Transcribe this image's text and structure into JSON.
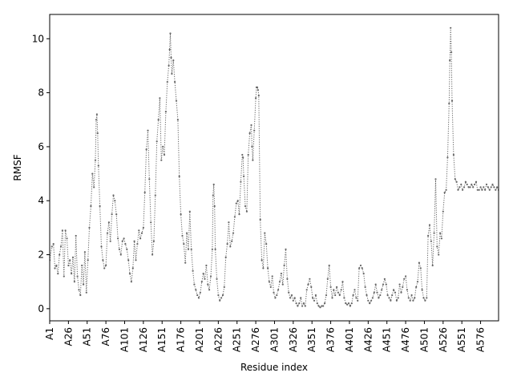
{
  "chart_data": {
    "type": "line",
    "title": "",
    "xlabel": "Residue index",
    "ylabel": "RMSF",
    "xlim": [
      1,
      600
    ],
    "ylim": [
      -0.45,
      10.9
    ],
    "yticks": [
      0,
      2,
      4,
      6,
      8,
      10
    ],
    "xticks": [
      {
        "x": 1,
        "label": "A1"
      },
      {
        "x": 26,
        "label": "A26"
      },
      {
        "x": 51,
        "label": "A51"
      },
      {
        "x": 76,
        "label": "A76"
      },
      {
        "x": 101,
        "label": "A101"
      },
      {
        "x": 126,
        "label": "A126"
      },
      {
        "x": 151,
        "label": "A151"
      },
      {
        "x": 176,
        "label": "A176"
      },
      {
        "x": 201,
        "label": "A201"
      },
      {
        "x": 226,
        "label": "A226"
      },
      {
        "x": 251,
        "label": "A251"
      },
      {
        "x": 276,
        "label": "A276"
      },
      {
        "x": 301,
        "label": "A301"
      },
      {
        "x": 326,
        "label": "A326"
      },
      {
        "x": 351,
        "label": "A351"
      },
      {
        "x": 376,
        "label": "A376"
      },
      {
        "x": 401,
        "label": "A401"
      },
      {
        "x": 426,
        "label": "A426"
      },
      {
        "x": 451,
        "label": "A451"
      },
      {
        "x": 476,
        "label": "A476"
      },
      {
        "x": 501,
        "label": "A501"
      },
      {
        "x": 526,
        "label": "A526"
      },
      {
        "x": 551,
        "label": "A551"
      },
      {
        "x": 576,
        "label": "A576"
      }
    ],
    "grid": false,
    "series": [
      {
        "color": "#666666",
        "style": "dotted line with point markers",
        "points": [
          [
            1,
            1.8
          ],
          [
            4,
            2.3
          ],
          [
            6,
            2.4
          ],
          [
            8,
            1.5
          ],
          [
            10,
            1.6
          ],
          [
            12,
            1.3
          ],
          [
            14,
            2.0
          ],
          [
            16,
            2.3
          ],
          [
            18,
            2.9
          ],
          [
            20,
            1.2
          ],
          [
            22,
            2.9
          ],
          [
            24,
            2.6
          ],
          [
            26,
            1.6
          ],
          [
            28,
            1.8
          ],
          [
            30,
            1.3
          ],
          [
            32,
            1.9
          ],
          [
            34,
            1.0
          ],
          [
            36,
            2.7
          ],
          [
            38,
            1.2
          ],
          [
            40,
            0.7
          ],
          [
            42,
            0.5
          ],
          [
            44,
            1.6
          ],
          [
            46,
            0.9
          ],
          [
            48,
            2.1
          ],
          [
            50,
            0.6
          ],
          [
            52,
            1.8
          ],
          [
            54,
            3.0
          ],
          [
            56,
            3.8
          ],
          [
            58,
            5.0
          ],
          [
            60,
            4.5
          ],
          [
            62,
            5.5
          ],
          [
            63,
            7.0
          ],
          [
            64,
            7.2
          ],
          [
            65,
            6.5
          ],
          [
            66,
            5.3
          ],
          [
            68,
            3.8
          ],
          [
            70,
            2.3
          ],
          [
            72,
            1.8
          ],
          [
            74,
            1.5
          ],
          [
            76,
            1.6
          ],
          [
            78,
            2.8
          ],
          [
            80,
            3.2
          ],
          [
            82,
            2.5
          ],
          [
            84,
            3.5
          ],
          [
            86,
            4.2
          ],
          [
            88,
            4.0
          ],
          [
            90,
            3.5
          ],
          [
            92,
            2.6
          ],
          [
            94,
            2.2
          ],
          [
            96,
            2.0
          ],
          [
            98,
            2.5
          ],
          [
            100,
            2.6
          ],
          [
            102,
            2.4
          ],
          [
            104,
            2.2
          ],
          [
            106,
            1.8
          ],
          [
            108,
            1.3
          ],
          [
            110,
            1.0
          ],
          [
            112,
            1.5
          ],
          [
            114,
            2.5
          ],
          [
            116,
            1.8
          ],
          [
            118,
            2.4
          ],
          [
            120,
            2.9
          ],
          [
            122,
            2.6
          ],
          [
            124,
            2.8
          ],
          [
            126,
            3.0
          ],
          [
            128,
            4.3
          ],
          [
            130,
            5.9
          ],
          [
            132,
            6.6
          ],
          [
            134,
            4.8
          ],
          [
            136,
            3.2
          ],
          [
            138,
            2.0
          ],
          [
            140,
            2.5
          ],
          [
            142,
            4.2
          ],
          [
            144,
            6.2
          ],
          [
            146,
            7.0
          ],
          [
            148,
            7.8
          ],
          [
            150,
            5.5
          ],
          [
            152,
            6.0
          ],
          [
            154,
            5.7
          ],
          [
            156,
            7.3
          ],
          [
            158,
            8.4
          ],
          [
            160,
            9.0
          ],
          [
            161,
            9.6
          ],
          [
            162,
            10.2
          ],
          [
            163,
            9.3
          ],
          [
            164,
            8.7
          ],
          [
            166,
            9.2
          ],
          [
            168,
            8.4
          ],
          [
            170,
            7.7
          ],
          [
            172,
            7.0
          ],
          [
            174,
            4.9
          ],
          [
            176,
            3.5
          ],
          [
            178,
            2.7
          ],
          [
            180,
            2.4
          ],
          [
            182,
            1.7
          ],
          [
            184,
            2.8
          ],
          [
            186,
            2.2
          ],
          [
            188,
            3.6
          ],
          [
            190,
            2.2
          ],
          [
            192,
            1.4
          ],
          [
            194,
            0.9
          ],
          [
            196,
            0.7
          ],
          [
            198,
            0.5
          ],
          [
            200,
            0.4
          ],
          [
            202,
            0.6
          ],
          [
            204,
            1.0
          ],
          [
            206,
            1.3
          ],
          [
            208,
            1.1
          ],
          [
            210,
            1.6
          ],
          [
            212,
            0.9
          ],
          [
            214,
            0.7
          ],
          [
            216,
            1.2
          ],
          [
            218,
            2.2
          ],
          [
            219,
            4.2
          ],
          [
            220,
            4.6
          ],
          [
            221,
            3.8
          ],
          [
            222,
            2.2
          ],
          [
            224,
            1.1
          ],
          [
            226,
            0.5
          ],
          [
            228,
            0.3
          ],
          [
            230,
            0.4
          ],
          [
            232,
            0.5
          ],
          [
            234,
            0.8
          ],
          [
            236,
            1.9
          ],
          [
            238,
            2.4
          ],
          [
            240,
            3.2
          ],
          [
            242,
            2.3
          ],
          [
            244,
            2.5
          ],
          [
            246,
            2.8
          ],
          [
            248,
            3.4
          ],
          [
            250,
            3.9
          ],
          [
            252,
            4.0
          ],
          [
            254,
            3.5
          ],
          [
            256,
            4.7
          ],
          [
            258,
            5.7
          ],
          [
            259,
            5.6
          ],
          [
            260,
            4.9
          ],
          [
            262,
            3.8
          ],
          [
            264,
            3.6
          ],
          [
            266,
            5.7
          ],
          [
            268,
            6.5
          ],
          [
            270,
            6.8
          ],
          [
            271,
            6.0
          ],
          [
            272,
            5.5
          ],
          [
            274,
            6.6
          ],
          [
            276,
            7.8
          ],
          [
            277,
            8.2
          ],
          [
            278,
            8.2
          ],
          [
            279,
            8.1
          ],
          [
            280,
            7.9
          ],
          [
            282,
            3.3
          ],
          [
            284,
            1.8
          ],
          [
            286,
            1.5
          ],
          [
            288,
            2.8
          ],
          [
            290,
            2.4
          ],
          [
            292,
            1.5
          ],
          [
            294,
            1.0
          ],
          [
            296,
            0.8
          ],
          [
            298,
            1.2
          ],
          [
            300,
            0.6
          ],
          [
            302,
            0.4
          ],
          [
            304,
            0.5
          ],
          [
            306,
            0.7
          ],
          [
            308,
            1.0
          ],
          [
            310,
            1.3
          ],
          [
            312,
            0.9
          ],
          [
            314,
            1.6
          ],
          [
            316,
            2.2
          ],
          [
            318,
            1.1
          ],
          [
            320,
            0.6
          ],
          [
            322,
            0.4
          ],
          [
            324,
            0.5
          ],
          [
            326,
            0.3
          ],
          [
            328,
            0.4
          ],
          [
            330,
            0.2
          ],
          [
            332,
            0.1
          ],
          [
            334,
            0.2
          ],
          [
            336,
            0.4
          ],
          [
            338,
            0.1
          ],
          [
            340,
            0.2
          ],
          [
            342,
            0.1
          ],
          [
            344,
            0.7
          ],
          [
            346,
            0.9
          ],
          [
            348,
            1.1
          ],
          [
            350,
            0.8
          ],
          [
            352,
            0.4
          ],
          [
            354,
            0.3
          ],
          [
            356,
            0.5
          ],
          [
            358,
            0.2
          ],
          [
            360,
            0.1
          ],
          [
            362,
            0.05
          ],
          [
            364,
            0.1
          ],
          [
            366,
            0.1
          ],
          [
            368,
            0.2
          ],
          [
            370,
            0.5
          ],
          [
            372,
            1.1
          ],
          [
            374,
            1.6
          ],
          [
            376,
            0.8
          ],
          [
            378,
            0.4
          ],
          [
            380,
            0.7
          ],
          [
            382,
            0.5
          ],
          [
            384,
            0.8
          ],
          [
            386,
            0.6
          ],
          [
            388,
            0.5
          ],
          [
            390,
            0.7
          ],
          [
            392,
            1.0
          ],
          [
            394,
            0.4
          ],
          [
            396,
            0.2
          ],
          [
            398,
            0.15
          ],
          [
            400,
            0.2
          ],
          [
            402,
            0.1
          ],
          [
            404,
            0.2
          ],
          [
            406,
            0.5
          ],
          [
            408,
            0.7
          ],
          [
            410,
            0.4
          ],
          [
            412,
            0.3
          ],
          [
            414,
            1.5
          ],
          [
            416,
            1.6
          ],
          [
            418,
            1.5
          ],
          [
            420,
            1.3
          ],
          [
            422,
            0.8
          ],
          [
            424,
            0.5
          ],
          [
            426,
            0.3
          ],
          [
            428,
            0.2
          ],
          [
            430,
            0.3
          ],
          [
            432,
            0.4
          ],
          [
            434,
            0.6
          ],
          [
            436,
            0.9
          ],
          [
            438,
            0.6
          ],
          [
            440,
            0.4
          ],
          [
            442,
            0.5
          ],
          [
            444,
            0.7
          ],
          [
            446,
            0.9
          ],
          [
            448,
            1.1
          ],
          [
            450,
            0.9
          ],
          [
            452,
            0.5
          ],
          [
            454,
            0.4
          ],
          [
            456,
            0.3
          ],
          [
            458,
            0.5
          ],
          [
            460,
            0.7
          ],
          [
            462,
            0.6
          ],
          [
            464,
            0.3
          ],
          [
            466,
            0.4
          ],
          [
            468,
            0.9
          ],
          [
            470,
            0.6
          ],
          [
            472,
            0.8
          ],
          [
            474,
            1.1
          ],
          [
            476,
            1.2
          ],
          [
            478,
            0.7
          ],
          [
            480,
            0.4
          ],
          [
            482,
            0.3
          ],
          [
            484,
            0.5
          ],
          [
            486,
            0.3
          ],
          [
            488,
            0.4
          ],
          [
            490,
            0.8
          ],
          [
            492,
            1.0
          ],
          [
            494,
            1.7
          ],
          [
            496,
            1.5
          ],
          [
            498,
            0.7
          ],
          [
            500,
            0.4
          ],
          [
            502,
            0.3
          ],
          [
            504,
            0.4
          ],
          [
            506,
            2.7
          ],
          [
            508,
            3.1
          ],
          [
            510,
            2.5
          ],
          [
            512,
            1.6
          ],
          [
            514,
            2.8
          ],
          [
            516,
            4.8
          ],
          [
            518,
            2.3
          ],
          [
            520,
            2.0
          ],
          [
            522,
            2.8
          ],
          [
            524,
            2.6
          ],
          [
            526,
            3.6
          ],
          [
            528,
            4.3
          ],
          [
            530,
            4.4
          ],
          [
            532,
            5.6
          ],
          [
            534,
            7.6
          ],
          [
            535,
            9.2
          ],
          [
            536,
            10.4
          ],
          [
            537,
            9.5
          ],
          [
            538,
            7.7
          ],
          [
            540,
            5.7
          ],
          [
            542,
            4.8
          ],
          [
            544,
            4.7
          ],
          [
            546,
            4.4
          ],
          [
            548,
            4.5
          ],
          [
            550,
            4.6
          ],
          [
            552,
            4.4
          ],
          [
            554,
            4.5
          ],
          [
            556,
            4.7
          ],
          [
            558,
            4.6
          ],
          [
            560,
            4.5
          ],
          [
            562,
            4.5
          ],
          [
            564,
            4.6
          ],
          [
            566,
            4.5
          ],
          [
            568,
            4.6
          ],
          [
            570,
            4.7
          ],
          [
            572,
            4.4
          ],
          [
            574,
            4.4
          ],
          [
            576,
            4.5
          ],
          [
            578,
            4.4
          ],
          [
            580,
            4.5
          ],
          [
            582,
            4.4
          ],
          [
            584,
            4.6
          ],
          [
            586,
            4.5
          ],
          [
            588,
            4.4
          ],
          [
            590,
            4.5
          ],
          [
            592,
            4.6
          ],
          [
            594,
            4.5
          ],
          [
            596,
            4.4
          ],
          [
            598,
            4.5
          ],
          [
            600,
            4.4
          ]
        ]
      }
    ]
  }
}
